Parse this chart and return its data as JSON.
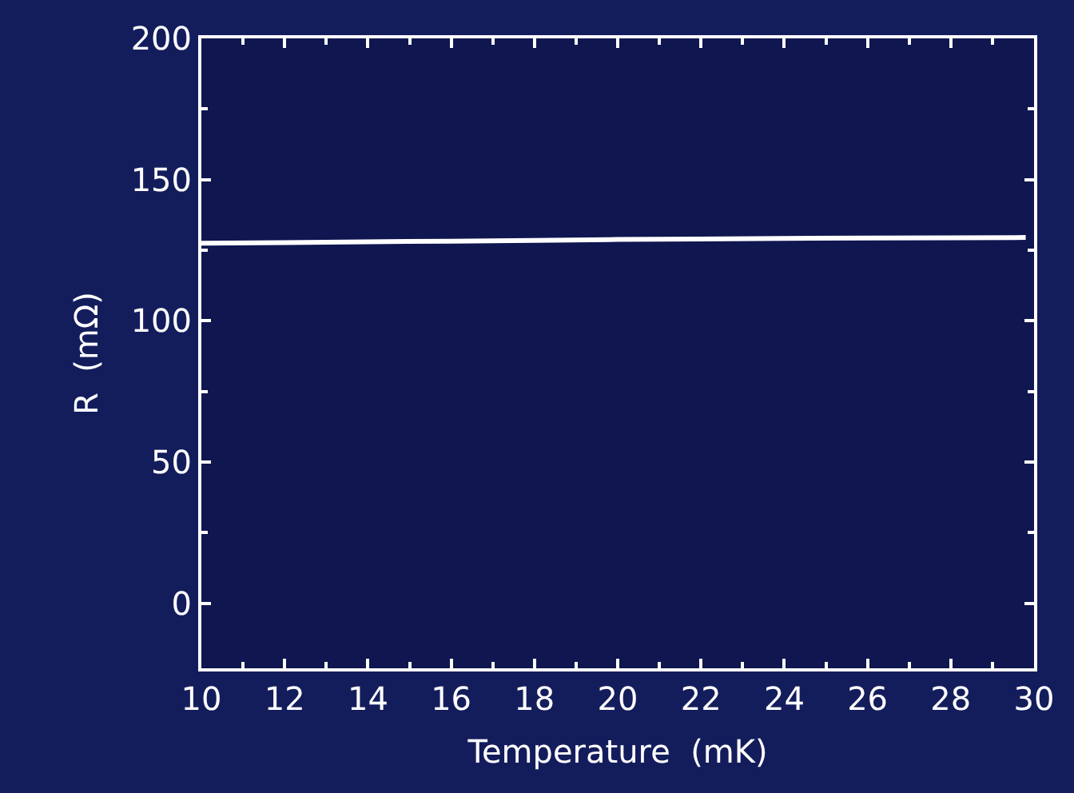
{
  "chart_data": {
    "type": "line",
    "xlabel": "Temperature  (mK)",
    "ylabel": "R  (mΩ)",
    "series": [
      {
        "color": "#ffffff",
        "x": [
          10,
          12,
          14,
          16,
          18,
          20,
          22,
          24,
          26,
          28,
          29.8
        ],
        "values": [
          127.5,
          127.7,
          128,
          128.2,
          128.5,
          128.8,
          129,
          129.2,
          129.3,
          129.4,
          129.5
        ]
      }
    ],
    "xlim": [
      10,
      30
    ],
    "xticks": [
      10,
      12,
      14,
      16,
      18,
      20,
      22,
      24,
      26,
      28,
      30
    ],
    "ylim": [
      -23,
      200
    ],
    "yticks": [
      0,
      50,
      100,
      150,
      200
    ],
    "grid": false,
    "marker": "none",
    "line_style": "solid"
  }
}
